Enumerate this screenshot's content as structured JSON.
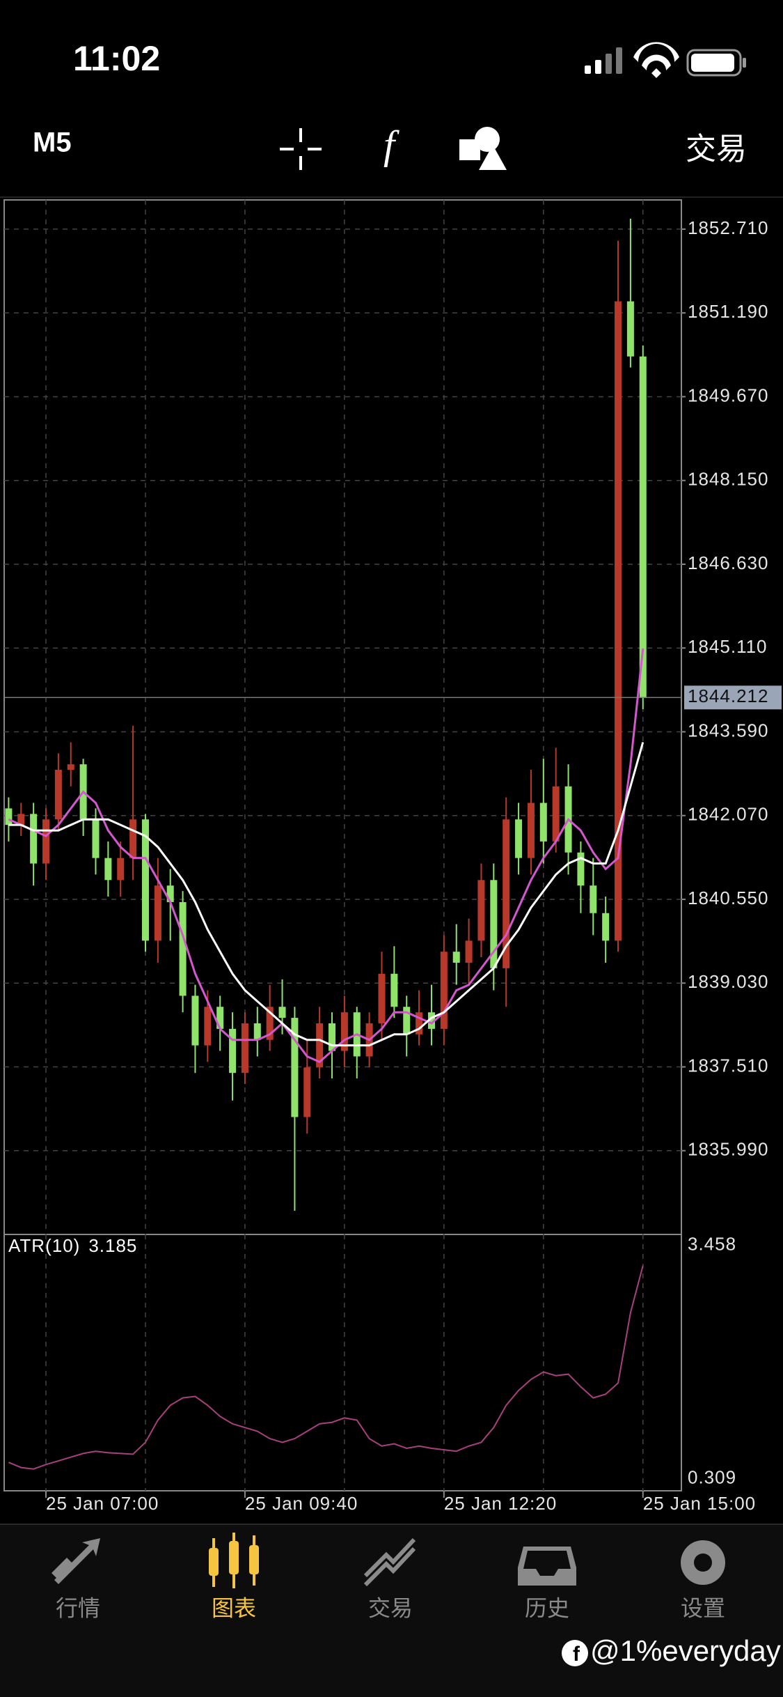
{
  "status_bar": {
    "time": "11:02"
  },
  "toolbar": {
    "timeframe": "M5",
    "trade": "交易"
  },
  "chart_data": [
    {
      "type": "candlestick",
      "categories": [
        null,
        null,
        null,
        "25 Jan 07:00",
        null,
        null,
        null,
        null,
        null,
        null,
        null,
        null,
        null,
        null,
        null,
        null,
        null,
        null,
        null,
        "25 Jan 09:40",
        null,
        null,
        null,
        null,
        null,
        null,
        null,
        null,
        null,
        null,
        null,
        null,
        null,
        null,
        null,
        "25 Jan 12:20",
        null,
        null,
        null,
        null,
        null,
        null,
        null,
        null,
        null,
        null,
        null,
        null,
        null,
        null,
        null,
        "25 Jan 15:00"
      ],
      "open": [
        1842.2,
        1841.9,
        1842.1,
        1841.2,
        1842.0,
        1842.9,
        1843.0,
        1842.0,
        1841.3,
        1840.9,
        1841.3,
        1842.0,
        1839.8,
        1840.8,
        1840.5,
        1838.8,
        1837.9,
        1838.6,
        1838.2,
        1837.4,
        1838.3,
        1838.0,
        1838.6,
        1838.4,
        1836.6,
        1837.5,
        1838.3,
        1837.8,
        1838.5,
        1837.7,
        1838.3,
        1839.2,
        1838.6,
        1838.1,
        1838.5,
        1838.2,
        1839.6,
        1839.4,
        1839.8,
        1840.9,
        1839.3,
        1842.0,
        1841.3,
        1842.3,
        1841.6,
        1842.6,
        1841.4,
        1840.8,
        1840.3,
        1839.8,
        1851.4,
        1850.4
      ],
      "high": [
        1842.4,
        1842.3,
        1842.3,
        1842.2,
        1843.2,
        1843.4,
        1843.1,
        1842.2,
        1841.6,
        1841.6,
        1843.7,
        1842.1,
        1841.3,
        1841.1,
        1840.7,
        1839.0,
        1838.9,
        1838.8,
        1838.5,
        1838.5,
        1838.6,
        1839.0,
        1839.1,
        1838.6,
        1838.0,
        1838.6,
        1838.5,
        1838.8,
        1838.6,
        1838.5,
        1839.6,
        1839.7,
        1838.8,
        1838.9,
        1839.0,
        1839.9,
        1840.1,
        1840.2,
        1841.2,
        1841.2,
        1842.4,
        1842.3,
        1842.9,
        1843.1,
        1843.3,
        1843.0,
        1841.6,
        1841.3,
        1840.6,
        1852.5,
        1852.9,
        1850.6
      ],
      "low": [
        1841.6,
        1841.7,
        1840.8,
        1840.9,
        1841.8,
        1842.6,
        1841.7,
        1841.0,
        1840.6,
        1840.6,
        1840.9,
        1839.6,
        1839.4,
        1839.8,
        1838.5,
        1837.4,
        1837.6,
        1837.8,
        1836.9,
        1837.2,
        1837.7,
        1837.8,
        1838.1,
        1834.9,
        1836.3,
        1837.3,
        1837.3,
        1837.5,
        1837.3,
        1837.5,
        1838.0,
        1838.4,
        1837.7,
        1837.9,
        1837.9,
        1837.9,
        1839.0,
        1839.0,
        1839.5,
        1838.9,
        1838.6,
        1841.0,
        1841.0,
        1841.2,
        1841.4,
        1841.0,
        1840.3,
        1839.9,
        1839.4,
        1839.6,
        1850.2,
        1844.0
      ],
      "close": [
        1841.9,
        1842.1,
        1841.2,
        1842.0,
        1842.9,
        1843.0,
        1842.0,
        1841.3,
        1840.9,
        1841.3,
        1842.0,
        1839.8,
        1840.8,
        1840.5,
        1838.8,
        1837.9,
        1838.6,
        1838.2,
        1837.4,
        1838.3,
        1838.0,
        1838.6,
        1838.4,
        1836.6,
        1837.5,
        1838.3,
        1837.8,
        1838.5,
        1837.7,
        1838.3,
        1839.2,
        1838.6,
        1838.1,
        1838.5,
        1838.2,
        1839.6,
        1839.4,
        1839.8,
        1840.9,
        1839.3,
        1842.0,
        1841.3,
        1842.3,
        1841.6,
        1842.6,
        1841.4,
        1840.8,
        1840.3,
        1839.8,
        1851.4,
        1850.4,
        1844.212
      ],
      "up_color": "#b8392a",
      "down_color": "#8fe36b",
      "series": [
        {
          "color": "#d557d0",
          "values": [
            1842.0,
            1841.9,
            1841.8,
            1841.7,
            1841.9,
            1842.2,
            1842.5,
            1842.3,
            1841.8,
            1841.5,
            1841.3,
            1841.3,
            1840.9,
            1840.5,
            1839.9,
            1839.2,
            1838.7,
            1838.2,
            1838.0,
            1838.0,
            1838.0,
            1838.1,
            1838.3,
            1838.0,
            1837.7,
            1837.6,
            1837.8,
            1838.0,
            1838.1,
            1838.0,
            1838.2,
            1838.5,
            1838.5,
            1838.4,
            1838.3,
            1838.5,
            1838.9,
            1839.0,
            1839.3,
            1839.6,
            1839.9,
            1840.4,
            1840.9,
            1841.3,
            1841.6,
            1842.0,
            1841.8,
            1841.4,
            1841.1,
            1841.3,
            1843.0,
            1845.1
          ]
        },
        {
          "color": "#ffffff",
          "values": [
            1841.9,
            1841.9,
            1841.8,
            1841.8,
            1841.8,
            1841.9,
            1842.0,
            1842.0,
            1842.0,
            1841.9,
            1841.8,
            1841.7,
            1841.5,
            1841.2,
            1840.9,
            1840.5,
            1840.0,
            1839.6,
            1839.2,
            1838.9,
            1838.7,
            1838.5,
            1838.3,
            1838.1,
            1838.0,
            1838.0,
            1837.9,
            1837.9,
            1837.9,
            1837.9,
            1838.0,
            1838.1,
            1838.1,
            1838.2,
            1838.4,
            1838.5,
            1838.7,
            1838.9,
            1839.1,
            1839.3,
            1839.7,
            1840.0,
            1840.4,
            1840.7,
            1841.0,
            1841.2,
            1841.3,
            1841.2,
            1841.2,
            1841.8,
            1842.6,
            1843.4
          ]
        }
      ],
      "ylim": [
        1834.47,
        1853.24
      ],
      "yticks": [
        {
          "value": 1852.71,
          "label": "1852.710"
        },
        {
          "value": 1851.19,
          "label": "1851.190"
        },
        {
          "value": 1849.67,
          "label": "1849.670"
        },
        {
          "value": 1848.15,
          "label": "1848.150"
        },
        {
          "value": 1846.63,
          "label": "1846.630"
        },
        {
          "value": 1845.11,
          "label": "1845.110"
        },
        {
          "value": 1843.59,
          "label": "1843.590"
        },
        {
          "value": 1842.07,
          "label": "1842.070"
        },
        {
          "value": 1840.55,
          "label": "1840.550"
        },
        {
          "value": 1839.03,
          "label": "1839.030"
        },
        {
          "value": 1837.51,
          "label": "1837.510"
        },
        {
          "value": 1835.99,
          "label": "1835.990"
        }
      ],
      "grid": true
    },
    {
      "type": "line",
      "title": "ATR(10)",
      "color": "#a8407f",
      "values": [
        0.53,
        0.46,
        0.44,
        0.5,
        0.55,
        0.6,
        0.65,
        0.68,
        0.66,
        0.65,
        0.64,
        0.8,
        1.1,
        1.3,
        1.4,
        1.42,
        1.3,
        1.15,
        1.05,
        1.0,
        0.95,
        0.85,
        0.8,
        0.85,
        0.95,
        1.05,
        1.07,
        1.13,
        1.1,
        0.85,
        0.75,
        0.78,
        0.72,
        0.75,
        0.72,
        0.7,
        0.68,
        0.75,
        0.8,
        1.0,
        1.3,
        1.5,
        1.65,
        1.75,
        1.7,
        1.72,
        1.55,
        1.4,
        1.45,
        1.6,
        2.55,
        3.185
      ],
      "ylim": [
        0.146,
        3.606
      ],
      "yticks": [
        3.458,
        0.309
      ],
      "grid": true
    }
  ],
  "tabs": [
    {
      "label": "行情"
    },
    {
      "label": "图表"
    },
    {
      "label": "交易"
    },
    {
      "label": "历史"
    },
    {
      "label": "设置"
    }
  ],
  "active_tab": 1,
  "watermark": "@1%everyday"
}
